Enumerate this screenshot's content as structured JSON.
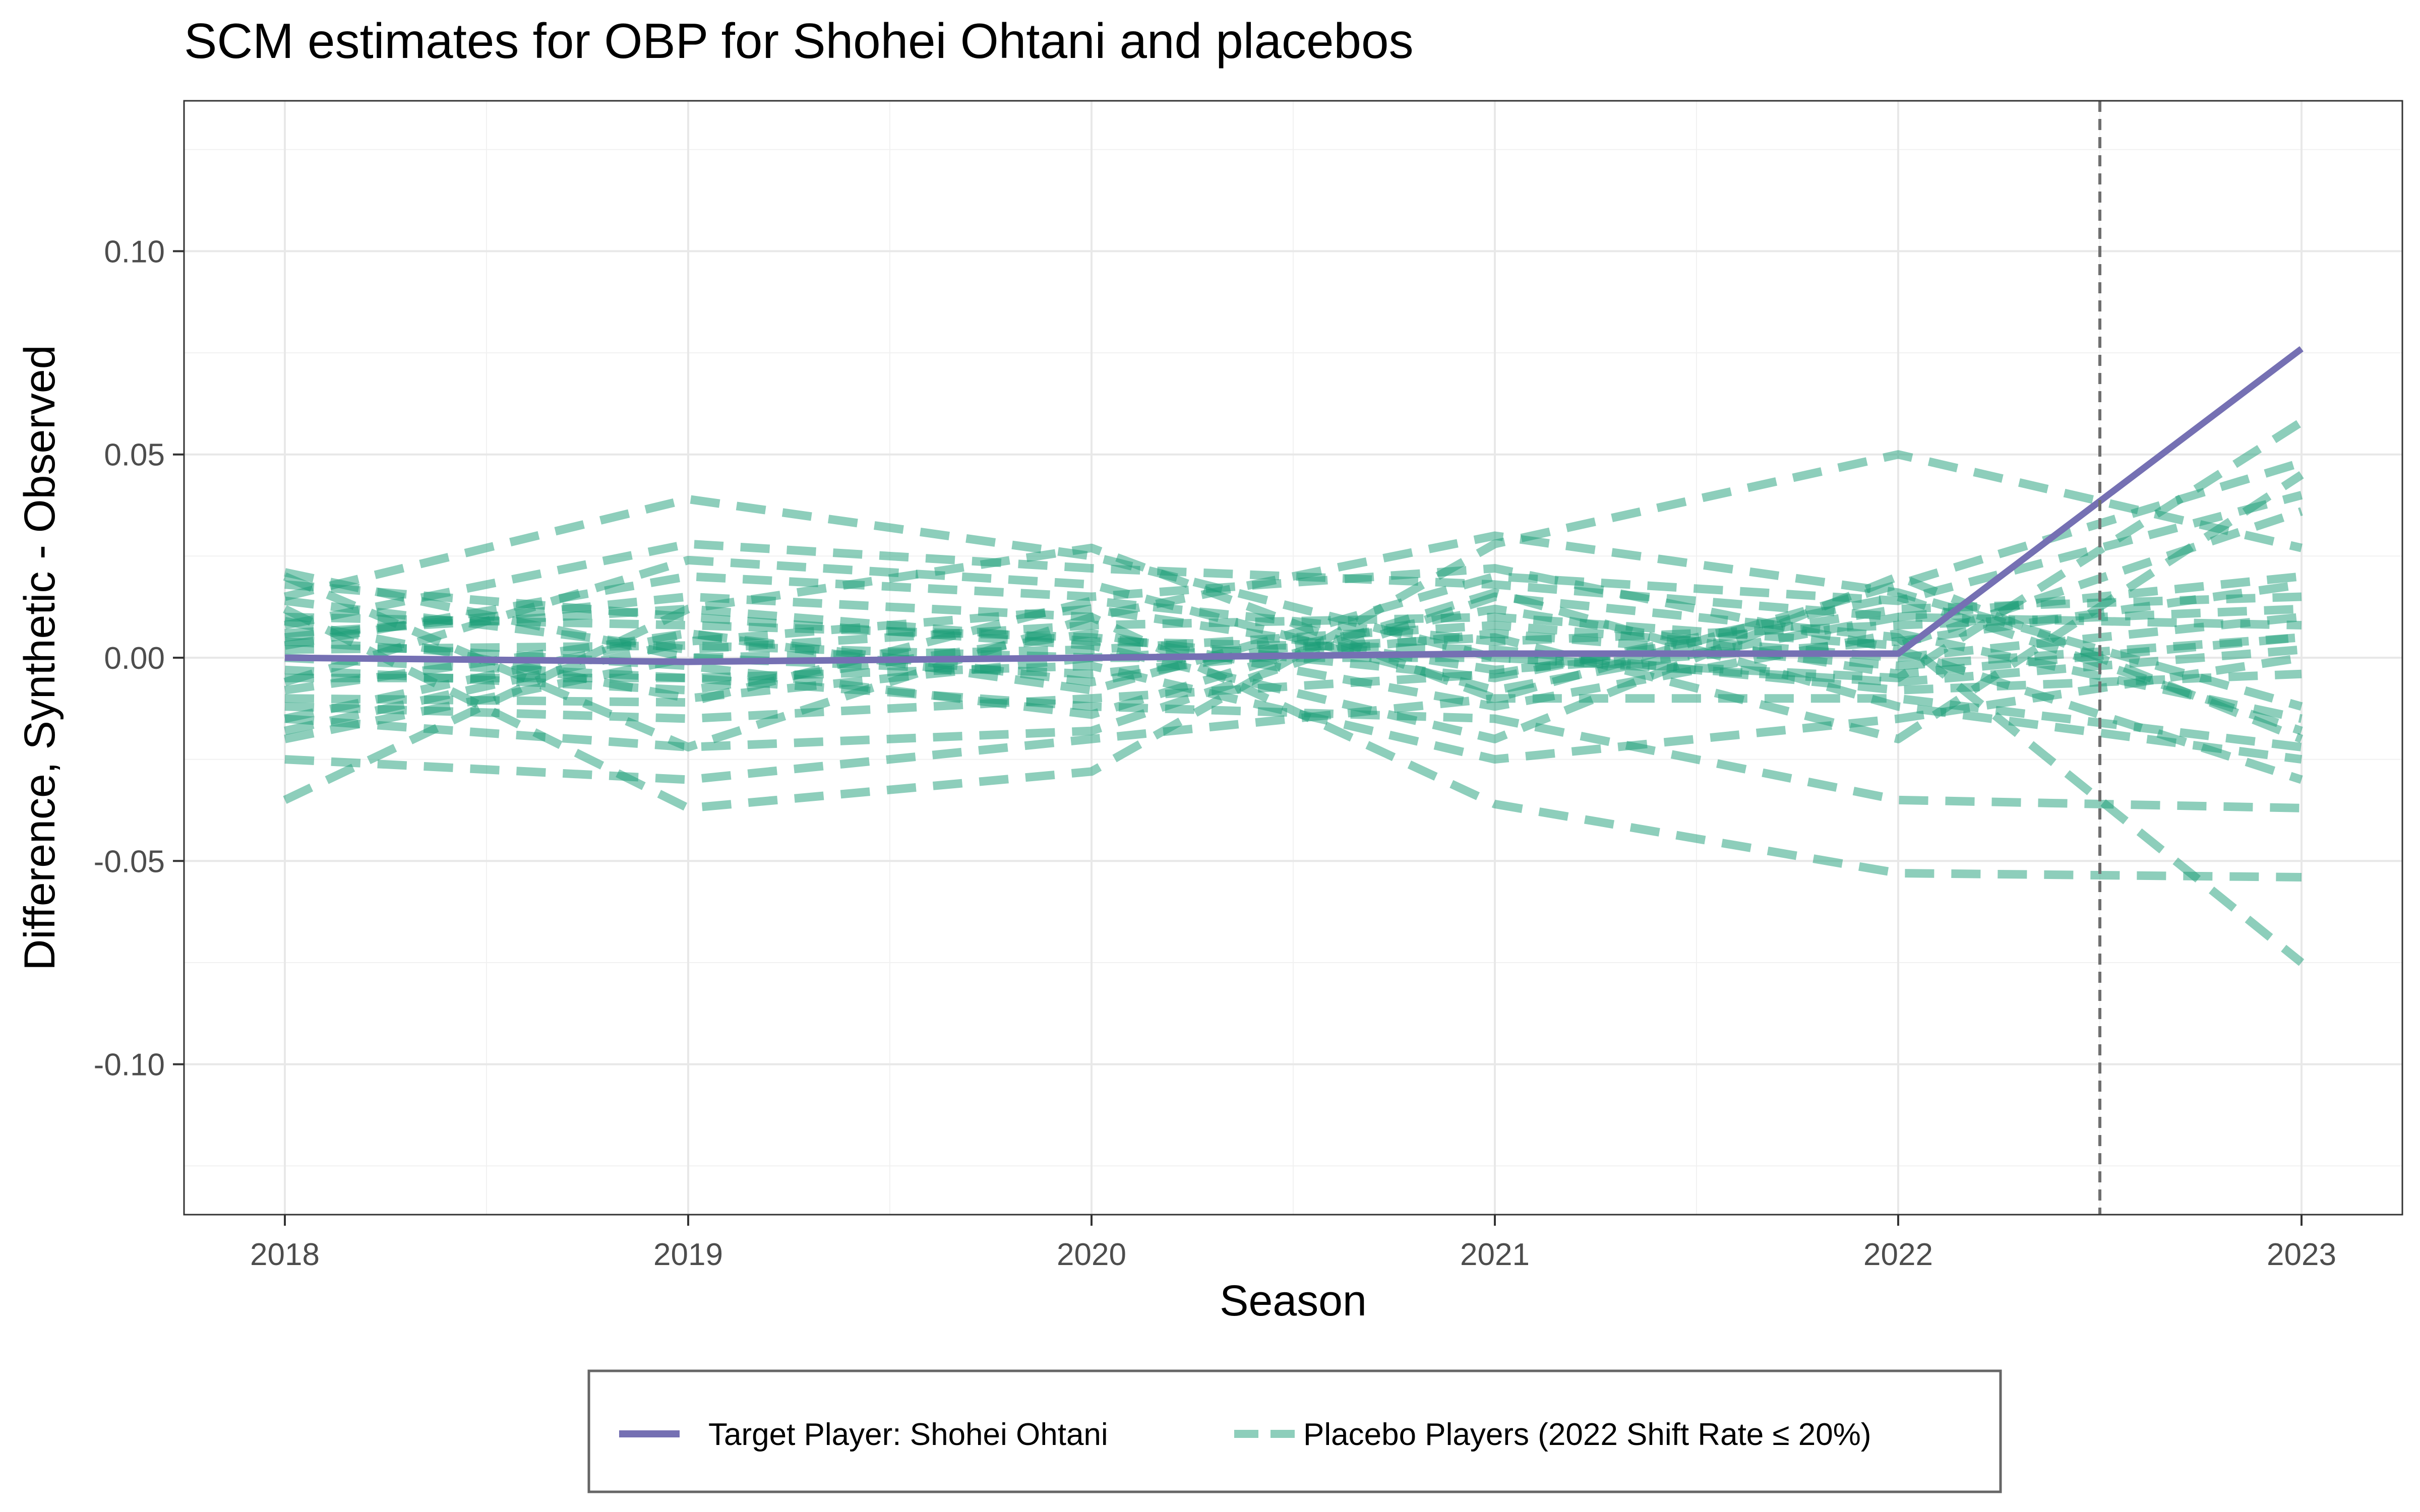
{
  "chart_data": {
    "type": "line",
    "title": "SCM estimates for OBP for Shohei Ohtani and placebos",
    "xlabel": "Season",
    "ylabel": "Difference, Synthetic - Observed",
    "x": [
      2018,
      2019,
      2020,
      2021,
      2022,
      2023
    ],
    "x_ticks": [
      "2018",
      "2019",
      "2020",
      "2021",
      "2022",
      "2023"
    ],
    "y_ticks": [
      "-0.10",
      "-0.05",
      "0.00",
      "0.05",
      "0.10"
    ],
    "y_tick_values": [
      -0.1,
      -0.05,
      0.0,
      0.05,
      0.1
    ],
    "xlim": [
      2017.75,
      2023.25
    ],
    "ylim": [
      -0.137,
      0.137
    ],
    "grid": true,
    "intervention_x": 2022.5,
    "legend_position": "bottom",
    "colors": {
      "target": "#7570b3",
      "placebo": "#1b9e77",
      "vline": "#6f6f6f"
    },
    "legend": [
      {
        "label": "Target Player: Shohei Ohtani",
        "style": "solid",
        "color": "#7570b3"
      },
      {
        "label": "Placebo Players (2022 Shift Rate ≤ 20%)",
        "style": "dashed",
        "color": "#1b9e77"
      }
    ],
    "target_series": {
      "values": [
        0.0,
        -0.001,
        0.0,
        0.001,
        0.001,
        0.076
      ]
    },
    "placebo_series": [
      {
        "values": [
          0.02,
          -0.022,
          0.01,
          0.03,
          0.016,
          -0.012
        ]
      },
      {
        "values": [
          -0.035,
          0.012,
          0.027,
          -0.01,
          0.018,
          0.048
        ]
      },
      {
        "values": [
          0.015,
          0.039,
          0.025,
          0.0,
          -0.005,
          0.058
        ]
      },
      {
        "values": [
          0.012,
          -0.037,
          -0.028,
          0.028,
          0.05,
          0.027
        ]
      },
      {
        "values": [
          0.008,
          0.028,
          0.022,
          0.018,
          0.01,
          0.02
        ]
      },
      {
        "values": [
          -0.015,
          -0.022,
          -0.018,
          0.015,
          0.005,
          -0.075
        ]
      },
      {
        "values": [
          0.005,
          0.015,
          0.01,
          -0.036,
          -0.053,
          -0.054
        ]
      },
      {
        "values": [
          -0.005,
          -0.005,
          -0.012,
          -0.015,
          -0.035,
          -0.037
        ]
      },
      {
        "values": [
          0.002,
          0.003,
          0.0,
          0.005,
          -0.02,
          0.045
        ]
      },
      {
        "values": [
          0.018,
          0.01,
          0.003,
          -0.02,
          0.02,
          -0.02
        ]
      },
      {
        "values": [
          -0.02,
          0.0,
          0.002,
          0.008,
          0.0,
          0.01
        ]
      },
      {
        "values": [
          -0.01,
          -0.011,
          0.014,
          0.004,
          0.008,
          0.012
        ]
      },
      {
        "values": [
          0.01,
          0.008,
          0.005,
          -0.005,
          0.015,
          -0.018
        ]
      },
      {
        "values": [
          -0.025,
          -0.03,
          -0.02,
          -0.01,
          -0.01,
          -0.022
        ]
      },
      {
        "values": [
          0.003,
          0.02,
          0.015,
          0.022,
          0.002,
          -0.03
        ]
      },
      {
        "values": [
          -0.008,
          0.006,
          -0.006,
          0.012,
          -0.004,
          0.005
        ]
      },
      {
        "values": [
          0.0,
          -0.005,
          -0.002,
          -0.025,
          -0.015,
          0.0
        ]
      },
      {
        "values": [
          0.014,
          0.002,
          0.008,
          0.01,
          0.003,
          0.036
        ]
      },
      {
        "values": [
          -0.012,
          -0.015,
          -0.01,
          -0.004,
          0.012,
          0.015
        ]
      },
      {
        "values": [
          0.006,
          0.012,
          0.004,
          0.002,
          -0.008,
          -0.004
        ]
      },
      {
        "values": [
          -0.003,
          -0.008,
          0.006,
          -0.012,
          0.006,
          -0.015
        ]
      },
      {
        "values": [
          0.021,
          0.0,
          -0.004,
          0.006,
          -0.002,
          0.005
        ]
      },
      {
        "values": [
          -0.018,
          0.004,
          0.012,
          -0.003,
          0.004,
          0.018
        ]
      },
      {
        "values": [
          0.004,
          -0.002,
          -0.014,
          0.016,
          -0.012,
          -0.025
        ]
      },
      {
        "values": [
          -0.006,
          0.024,
          0.018,
          -0.008,
          0.01,
          0.008
        ]
      },
      {
        "values": [
          0.009,
          -0.01,
          0.0,
          0.0,
          -0.006,
          0.002
        ]
      },
      {
        "values": [
          -0.015,
          0.006,
          -0.008,
          0.02,
          0.014,
          0.04
        ]
      }
    ]
  }
}
